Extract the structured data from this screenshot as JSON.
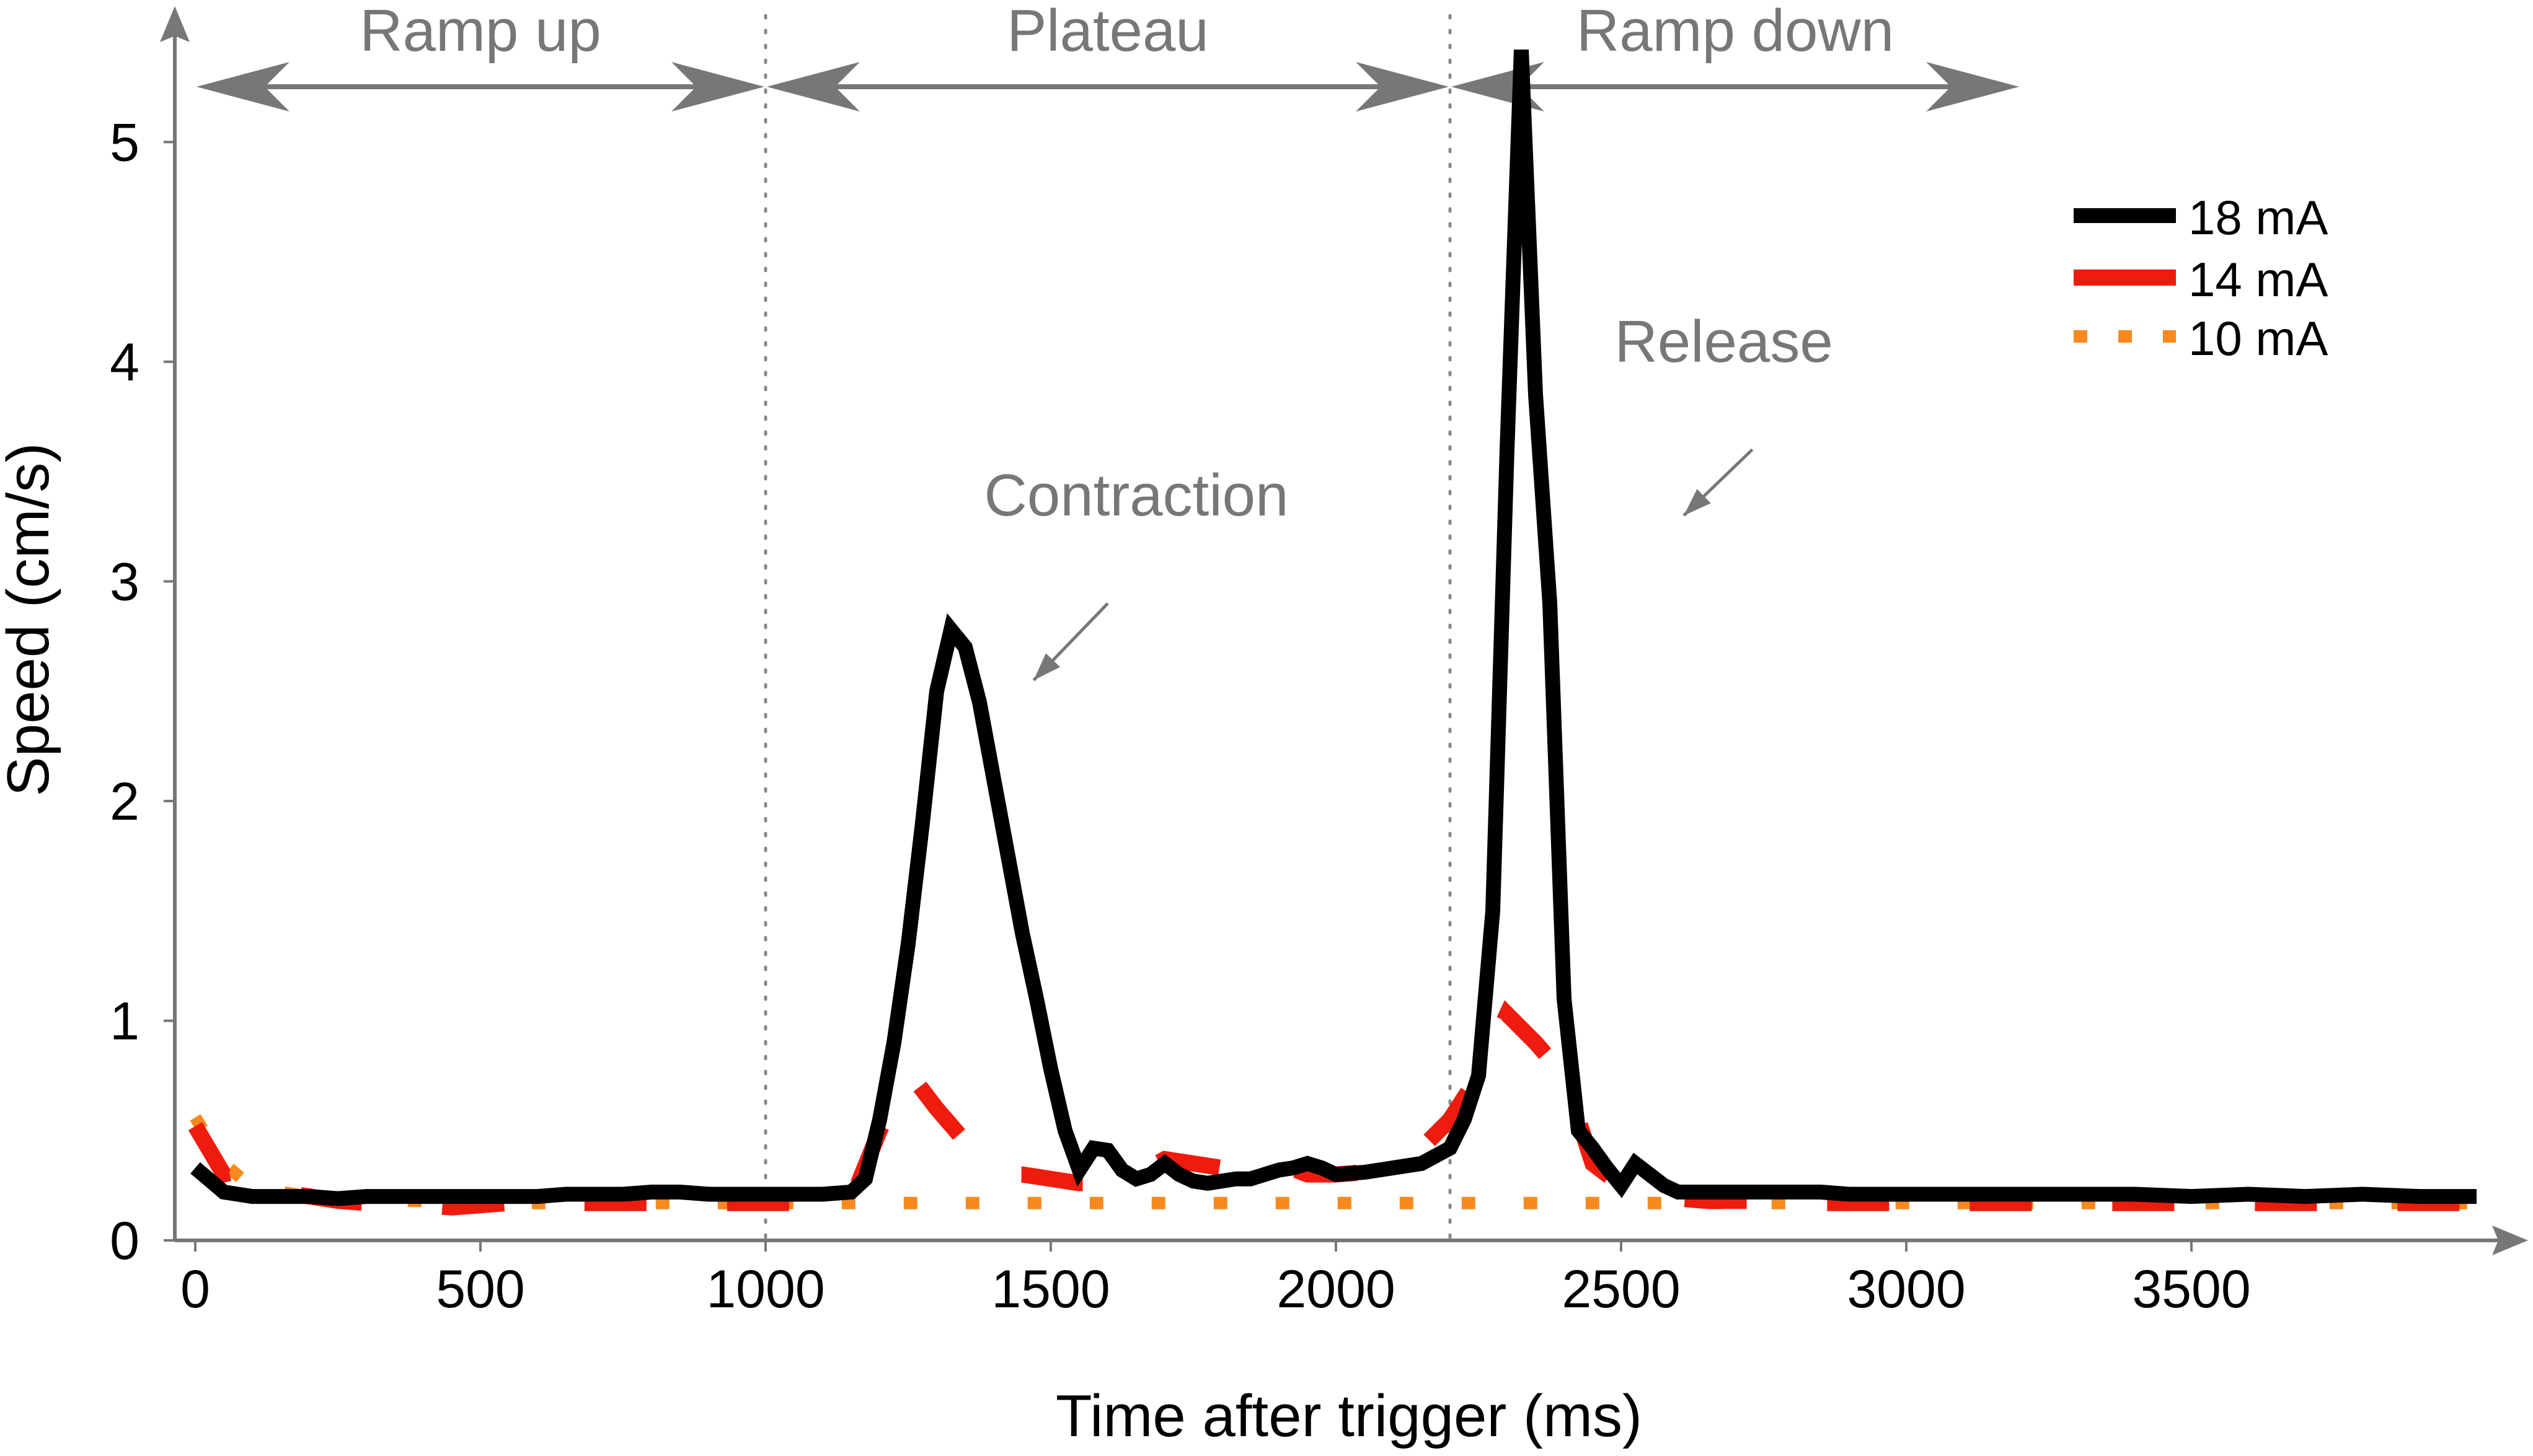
{
  "chart_data": {
    "type": "line",
    "xlabel": "Time after trigger (ms)",
    "ylabel": "Speed (cm/s)",
    "xlim": [
      0,
      4000
    ],
    "ylim": [
      0,
      5.5
    ],
    "xticks": [
      0,
      500,
      1000,
      1500,
      2000,
      2500,
      3000,
      3500
    ],
    "yticks": [
      0,
      1,
      2,
      3,
      4,
      5
    ],
    "phase_boundaries": [
      1000,
      2200
    ],
    "phases": [
      {
        "label": "Ramp up",
        "start": 0,
        "end": 1000
      },
      {
        "label": "Plateau",
        "start": 1000,
        "end": 2200
      },
      {
        "label": "Ramp down",
        "start": 2200,
        "end": 3200
      }
    ],
    "annotations": [
      {
        "text": "Contraction",
        "x": 1650,
        "y": 3.3,
        "arrow_from": [
          1600,
          2.9
        ],
        "arrow_to": [
          1470,
          2.55
        ]
      },
      {
        "text": "Release",
        "x": 2680,
        "y": 4.0,
        "arrow_from": [
          2730,
          3.6
        ],
        "arrow_to": [
          2610,
          3.3
        ]
      }
    ],
    "series": [
      {
        "name": "18 mA",
        "color": "#000000",
        "style": "solid",
        "x": [
          0,
          50,
          100,
          150,
          200,
          250,
          300,
          350,
          400,
          450,
          500,
          550,
          600,
          650,
          700,
          750,
          800,
          850,
          900,
          950,
          1000,
          1050,
          1100,
          1150,
          1175,
          1200,
          1225,
          1250,
          1275,
          1300,
          1325,
          1350,
          1375,
          1400,
          1425,
          1450,
          1475,
          1500,
          1525,
          1550,
          1575,
          1600,
          1625,
          1650,
          1675,
          1700,
          1725,
          1750,
          1775,
          1800,
          1825,
          1850,
          1875,
          1900,
          1925,
          1950,
          1975,
          2000,
          2050,
          2100,
          2150,
          2200,
          2225,
          2250,
          2275,
          2300,
          2325,
          2350,
          2375,
          2400,
          2425,
          2450,
          2475,
          2500,
          2525,
          2550,
          2575,
          2600,
          2625,
          2650,
          2675,
          2700,
          2750,
          2800,
          2850,
          2900,
          2950,
          3000,
          3100,
          3200,
          3300,
          3400,
          3500,
          3600,
          3700,
          3800,
          3900,
          4000
        ],
        "values": [
          0.33,
          0.22,
          0.2,
          0.2,
          0.2,
          0.19,
          0.2,
          0.2,
          0.2,
          0.2,
          0.2,
          0.2,
          0.2,
          0.21,
          0.21,
          0.21,
          0.22,
          0.22,
          0.21,
          0.21,
          0.21,
          0.21,
          0.21,
          0.22,
          0.28,
          0.55,
          0.9,
          1.35,
          1.9,
          2.5,
          2.78,
          2.7,
          2.45,
          2.1,
          1.75,
          1.4,
          1.1,
          0.78,
          0.5,
          0.32,
          0.42,
          0.41,
          0.32,
          0.28,
          0.3,
          0.35,
          0.3,
          0.27,
          0.26,
          0.27,
          0.28,
          0.28,
          0.3,
          0.32,
          0.33,
          0.35,
          0.33,
          0.3,
          0.31,
          0.33,
          0.35,
          0.42,
          0.55,
          0.75,
          1.5,
          3.6,
          5.42,
          3.85,
          2.9,
          1.1,
          0.5,
          0.42,
          0.33,
          0.25,
          0.35,
          0.3,
          0.25,
          0.22,
          0.22,
          0.22,
          0.22,
          0.22,
          0.22,
          0.22,
          0.22,
          0.21,
          0.21,
          0.21,
          0.21,
          0.21,
          0.21,
          0.21,
          0.2,
          0.21,
          0.2,
          0.21,
          0.2,
          0.2
        ]
      },
      {
        "name": "14 mA",
        "color": "#ee1c0e",
        "style": "dashed",
        "x": [
          0,
          50,
          100,
          150,
          200,
          250,
          300,
          350,
          400,
          450,
          500,
          550,
          600,
          650,
          700,
          750,
          800,
          850,
          900,
          950,
          1000,
          1050,
          1100,
          1150,
          1200,
          1250,
          1300,
          1350,
          1400,
          1450,
          1500,
          1550,
          1600,
          1650,
          1700,
          1750,
          1800,
          1850,
          1900,
          1950,
          2000,
          2050,
          2100,
          2150,
          2200,
          2250,
          2300,
          2350,
          2400,
          2450,
          2500,
          2550,
          2600,
          2650,
          2700,
          2750,
          2800,
          2850,
          2900,
          2950,
          3000,
          3100,
          3200,
          3300,
          3400,
          3500,
          3600,
          3700,
          3800,
          3900,
          4000
        ],
        "values": [
          0.52,
          0.3,
          0.33,
          0.22,
          0.2,
          0.18,
          0.17,
          0.17,
          0.16,
          0.15,
          0.16,
          0.17,
          0.16,
          0.17,
          0.17,
          0.17,
          0.17,
          0.17,
          0.17,
          0.17,
          0.17,
          0.17,
          0.17,
          0.18,
          0.5,
          0.77,
          0.6,
          0.45,
          0.3,
          0.3,
          0.28,
          0.26,
          0.26,
          0.3,
          0.37,
          0.35,
          0.33,
          0.38,
          0.35,
          0.3,
          0.3,
          0.31,
          0.35,
          0.42,
          0.55,
          0.75,
          1.03,
          0.9,
          0.75,
          0.35,
          0.25,
          0.2,
          0.19,
          0.18,
          0.18,
          0.18,
          0.18,
          0.17,
          0.17,
          0.17,
          0.17,
          0.17,
          0.17,
          0.17,
          0.17,
          0.17,
          0.17,
          0.17,
          0.17,
          0.17,
          0.17
        ]
      },
      {
        "name": "10 mA",
        "color": "#f7891e",
        "style": "dotted",
        "x": [
          0,
          50,
          100,
          150,
          200,
          250,
          300,
          400,
          500,
          600,
          700,
          800,
          900,
          1000,
          1100,
          1200,
          1300,
          1400,
          1500,
          1600,
          1700,
          1800,
          1900,
          2000,
          2100,
          2200,
          2300,
          2400,
          2500,
          2600,
          2700,
          2800,
          2900,
          3000,
          3100,
          3200,
          3300,
          3400,
          3500,
          3600,
          3700,
          3800,
          3900,
          4000
        ],
        "values": [
          0.56,
          0.35,
          0.24,
          0.22,
          0.2,
          0.19,
          0.18,
          0.18,
          0.17,
          0.17,
          0.17,
          0.17,
          0.17,
          0.17,
          0.17,
          0.17,
          0.17,
          0.17,
          0.17,
          0.17,
          0.17,
          0.17,
          0.17,
          0.17,
          0.17,
          0.17,
          0.17,
          0.17,
          0.17,
          0.17,
          0.17,
          0.17,
          0.17,
          0.17,
          0.17,
          0.17,
          0.17,
          0.17,
          0.17,
          0.17,
          0.17,
          0.17,
          0.17,
          0.17
        ]
      }
    ]
  }
}
